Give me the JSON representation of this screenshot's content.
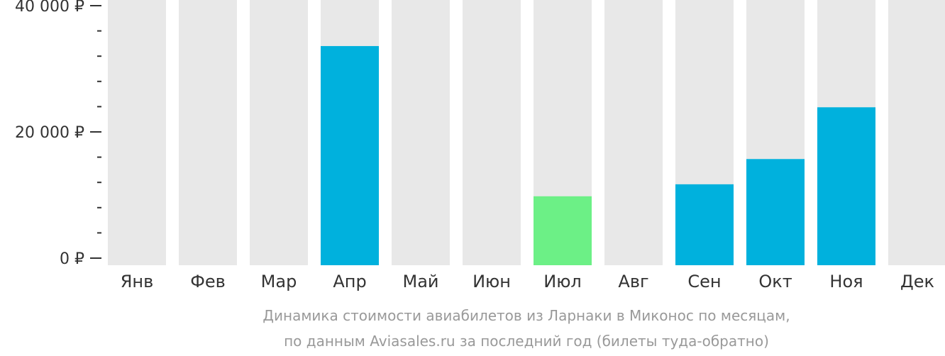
{
  "chart_data": {
    "type": "bar",
    "categories": [
      "Янв",
      "Фев",
      "Мар",
      "Апр",
      "Май",
      "Июн",
      "Июл",
      "Авг",
      "Сен",
      "Окт",
      "Ноя",
      "Дек"
    ],
    "values": [
      null,
      null,
      null,
      33600,
      null,
      null,
      9800,
      null,
      11700,
      15700,
      23900,
      null
    ],
    "highlight_index": 6,
    "ylim": [
      0,
      40000
    ],
    "y_ticks": [
      {
        "value": 0,
        "label": "0 ₽"
      },
      {
        "value": 20000,
        "label": "20 000 ₽"
      },
      {
        "value": 40000,
        "label": "40 000 ₽"
      }
    ],
    "y_minor_step": 4000,
    "caption_lines": [
      "Динамика стоимости авиабилетов из Ларнаки в Миконос по месяцам,",
      "по данным Aviasales.ru за последний год (билеты туда-обратно)"
    ],
    "colors": {
      "bar": "#00b1dd",
      "highlight": "#6cf086",
      "background_bar": "#e8e8e8",
      "axis": "#333333"
    }
  }
}
